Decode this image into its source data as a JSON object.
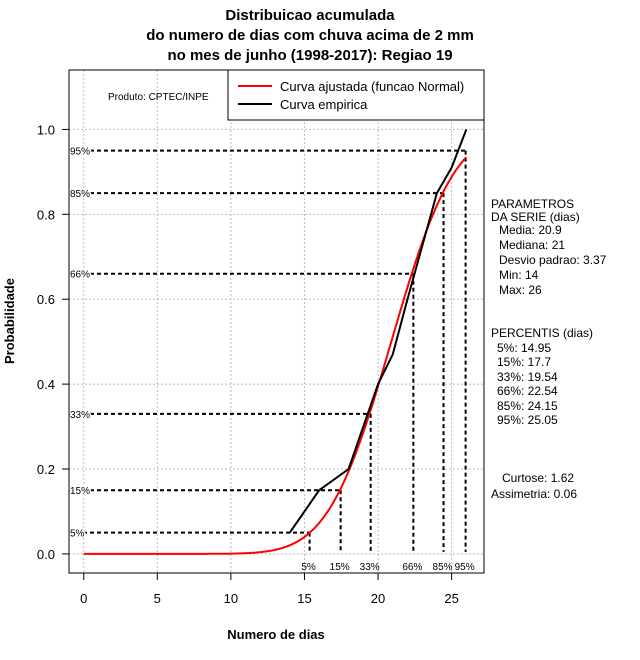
{
  "chart_data": {
    "type": "line",
    "title": [
      "Distribuicao acumulada",
      "do numero de dias com chuva acima de 2 mm",
      "no mes de junho (1998-2017): Regiao 19"
    ],
    "xlabel": "Numero de dias",
    "ylabel": "Probabilidade",
    "xlim": [
      -1,
      27.2
    ],
    "ylim": [
      -0.045,
      1.14
    ],
    "xticks": [
      0,
      5,
      10,
      15,
      20,
      25
    ],
    "yticks": [
      0.0,
      0.2,
      0.4,
      0.6,
      0.8,
      1.0
    ],
    "ytick_labels": [
      "0.0",
      "0.2",
      "0.4",
      "0.6",
      "0.8",
      "1.0"
    ],
    "grid": true,
    "credit": "Produto: CPTEC/INPE",
    "legend": {
      "placement": "top-right",
      "entries": [
        {
          "label": "Curva ajustada (funcao Normal)",
          "color": "#ff0000"
        },
        {
          "label": "Curva empirica",
          "color": "#000000"
        }
      ]
    },
    "series": [
      {
        "name": "Curva ajustada (funcao Normal)",
        "color": "#ff0000",
        "distribution": "normal",
        "mean": 20.9,
        "sd": 3.37,
        "x_range": [
          0,
          26
        ]
      },
      {
        "name": "Curva empirica",
        "color": "#000000",
        "x": [
          14,
          16,
          18,
          20,
          21,
          22,
          24,
          25,
          26
        ],
        "y": [
          0.05,
          0.15,
          0.2,
          0.4,
          0.47,
          0.6,
          0.85,
          0.91,
          1.0
        ]
      }
    ],
    "percentile_markers": [
      {
        "label": "5%",
        "p": 0.05,
        "x": 15.35
      },
      {
        "label": "15%",
        "p": 0.15,
        "x": 17.46
      },
      {
        "label": "33%",
        "p": 0.33,
        "x": 19.5
      },
      {
        "label": "66%",
        "p": 0.66,
        "x": 22.4
      },
      {
        "label": "85%",
        "p": 0.85,
        "x": 24.45
      },
      {
        "label": "95%",
        "p": 0.95,
        "x": 25.95
      }
    ],
    "side_panel": {
      "params_title": [
        "PARAMETROS",
        "DA SERIE (dias)"
      ],
      "params": [
        "Media: 20.9",
        "Mediana: 21",
        "Desvio padrao: 3.37",
        "Min: 14",
        "Max: 26"
      ],
      "percentis_title": "PERCENTIS (dias)",
      "percentis": [
        "5%: 14.95",
        "15%: 17.7",
        "33%: 19.54",
        "66%: 22.54",
        "85%: 24.15",
        "95%: 25.05"
      ],
      "curtose": "Curtose: 1.62",
      "assimetria": "Assimetria: 0.06"
    }
  }
}
